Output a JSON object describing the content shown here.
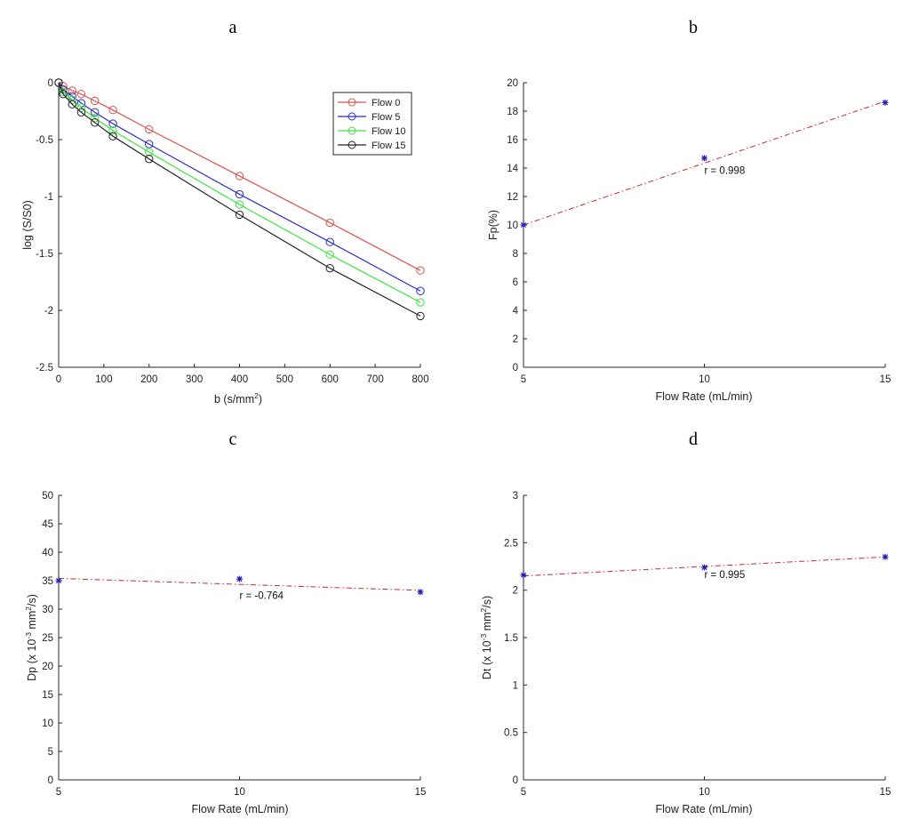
{
  "chart_data": [
    {
      "panel": "a",
      "type": "line",
      "xlabel": "b (s/mm",
      "xlabel_sup": "2",
      "xlabel_tail": ")",
      "ylabel": "log (S/S0)",
      "xlim": [
        0,
        800
      ],
      "ylim": [
        -2.5,
        0
      ],
      "xticks": [
        0,
        100,
        200,
        300,
        400,
        500,
        600,
        700,
        800
      ],
      "yticks": [
        -2.5,
        -2,
        -1.5,
        -1,
        -0.5,
        0
      ],
      "legend_position": "top-right",
      "x": [
        0,
        10,
        30,
        50,
        80,
        120,
        200,
        400,
        600,
        800
      ],
      "series": [
        {
          "name": "Flow 0",
          "color": "#d9534f",
          "values": [
            0,
            -0.03,
            -0.07,
            -0.1,
            -0.16,
            -0.24,
            -0.41,
            -0.82,
            -1.23,
            -1.65
          ]
        },
        {
          "name": "Flow 5",
          "color": "#2e2ec8",
          "values": [
            0,
            -0.06,
            -0.12,
            -0.18,
            -0.26,
            -0.36,
            -0.54,
            -0.98,
            -1.4,
            -1.83
          ]
        },
        {
          "name": "Flow 10",
          "color": "#3ee63e",
          "values": [
            0,
            -0.08,
            -0.15,
            -0.22,
            -0.31,
            -0.42,
            -0.61,
            -1.07,
            -1.51,
            -1.93
          ]
        },
        {
          "name": "Flow 15",
          "color": "#222222",
          "values": [
            0,
            -0.1,
            -0.19,
            -0.26,
            -0.35,
            -0.47,
            -0.67,
            -1.16,
            -1.63,
            -2.05
          ]
        }
      ]
    },
    {
      "panel": "b",
      "type": "scatter",
      "xlabel": "Flow Rate (mL/min)",
      "ylabel": "Fp(%)",
      "xlim": [
        5,
        15
      ],
      "ylim": [
        0,
        20
      ],
      "xticks": [
        5,
        10,
        15
      ],
      "yticks": [
        0,
        2,
        4,
        6,
        8,
        10,
        12,
        14,
        16,
        18,
        20
      ],
      "x": [
        5,
        10,
        15
      ],
      "values": [
        10,
        14.7,
        18.6
      ],
      "fit": [
        10,
        18.7
      ],
      "annotation": "r = 0.998",
      "annotation_at": [
        10,
        13.6
      ]
    },
    {
      "panel": "c",
      "type": "scatter",
      "xlabel": "Flow Rate (mL/min)",
      "ylabel": "Dp (x 10",
      "ylabel_sup": "-3",
      "ylabel_tail": " mm",
      "ylabel_sup2": "2",
      "ylabel_end": "/s)",
      "xlim": [
        5,
        15
      ],
      "ylim": [
        0,
        50
      ],
      "xticks": [
        5,
        10,
        15
      ],
      "yticks": [
        0,
        5,
        10,
        15,
        20,
        25,
        30,
        35,
        40,
        45,
        50
      ],
      "x": [
        5,
        10,
        15
      ],
      "values": [
        35,
        35.3,
        33
      ],
      "fit": [
        35.4,
        33.3
      ],
      "annotation": "r = -0.764",
      "annotation_at": [
        10,
        31.8
      ]
    },
    {
      "panel": "d",
      "type": "scatter",
      "xlabel": "Flow Rate (mL/min)",
      "ylabel": "Dt (x 10",
      "ylabel_sup": "-3",
      "ylabel_tail": " mm",
      "ylabel_sup2": "2",
      "ylabel_end": "/s)",
      "xlim": [
        5,
        15
      ],
      "ylim": [
        0,
        3
      ],
      "xticks": [
        5,
        10,
        15
      ],
      "yticks": [
        0,
        0.5,
        1,
        1.5,
        2,
        2.5,
        3
      ],
      "x": [
        5,
        10,
        15
      ],
      "values": [
        2.16,
        2.24,
        2.35
      ],
      "fit": [
        2.15,
        2.35
      ],
      "annotation": "r = 0.995",
      "annotation_at": [
        10,
        2.13
      ]
    }
  ],
  "style": {
    "fit_color": "#cc2a2a",
    "marker_color": "#1f1fb4"
  }
}
